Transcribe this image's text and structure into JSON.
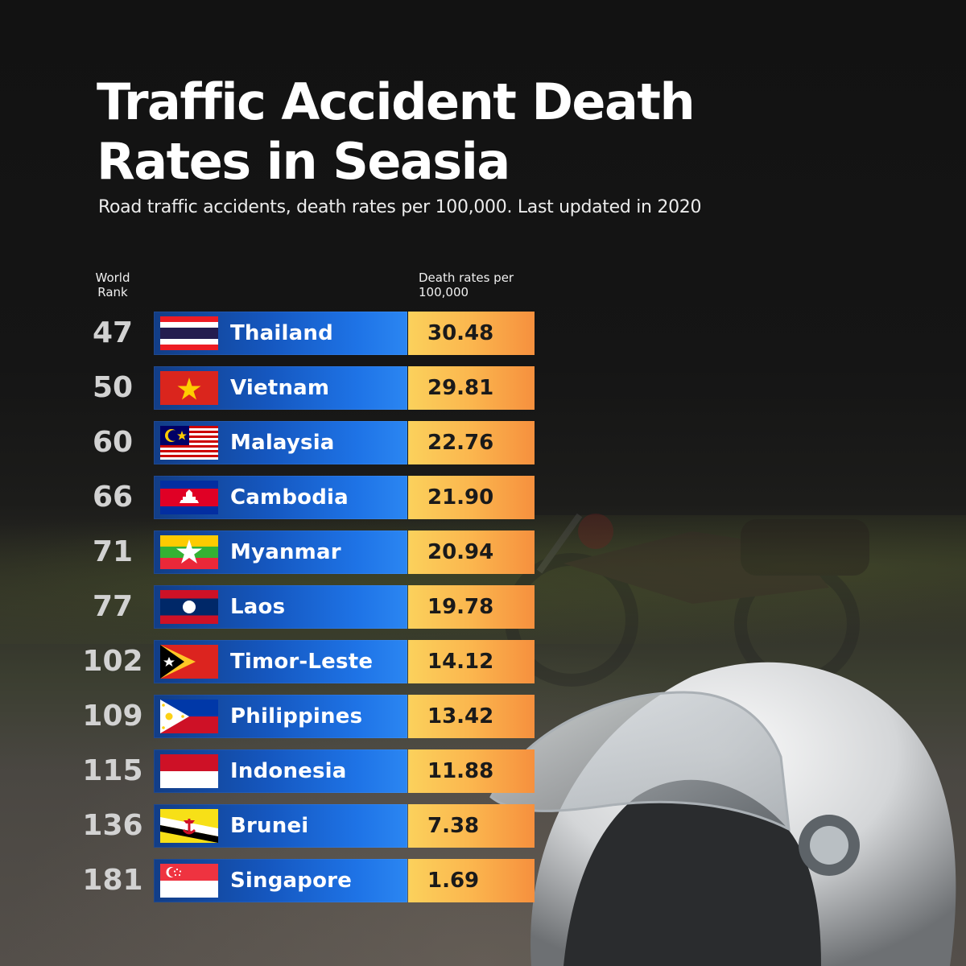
{
  "title": "Traffic Accident Death Rates in Seasia",
  "subtitle": "Road traffic accidents, death rates per 100,000. Last updated in 2020",
  "colors": {
    "country_bar": "#1557bf",
    "rate_bar": "#fbb64e",
    "background": "#151515"
  },
  "chart_data": {
    "type": "table",
    "title": "Traffic Accident Death Rates in Seasia",
    "subtitle": "Road traffic accidents, death rates per 100,000. Last updated in 2020",
    "columns": [
      "World Rank",
      "Death rates per 100,000"
    ],
    "rows": [
      {
        "rank": "47",
        "country": "Thailand",
        "rate": "30.48",
        "flag_icon": "thailand-flag-icon"
      },
      {
        "rank": "50",
        "country": "Vietnam",
        "rate": "29.81",
        "flag_icon": "vietnam-flag-icon"
      },
      {
        "rank": "60",
        "country": "Malaysia",
        "rate": "22.76",
        "flag_icon": "malaysia-flag-icon"
      },
      {
        "rank": "66",
        "country": "Cambodia",
        "rate": "21.90",
        "flag_icon": "cambodia-flag-icon"
      },
      {
        "rank": "71",
        "country": "Myanmar",
        "rate": "20.94",
        "flag_icon": "myanmar-flag-icon"
      },
      {
        "rank": "77",
        "country": "Laos",
        "rate": "19.78",
        "flag_icon": "laos-flag-icon"
      },
      {
        "rank": "102",
        "country": "Timor-Leste",
        "rate": "14.12",
        "flag_icon": "timor-leste-flag-icon"
      },
      {
        "rank": "109",
        "country": "Philippines",
        "rate": "13.42",
        "flag_icon": "philippines-flag-icon"
      },
      {
        "rank": "115",
        "country": "Indonesia",
        "rate": "11.88",
        "flag_icon": "indonesia-flag-icon"
      },
      {
        "rank": "136",
        "country": "Brunei",
        "rate": "7.38",
        "flag_icon": "brunei-flag-icon"
      },
      {
        "rank": "181",
        "country": "Singapore",
        "rate": "1.69",
        "flag_icon": "singapore-flag-icon"
      }
    ]
  }
}
